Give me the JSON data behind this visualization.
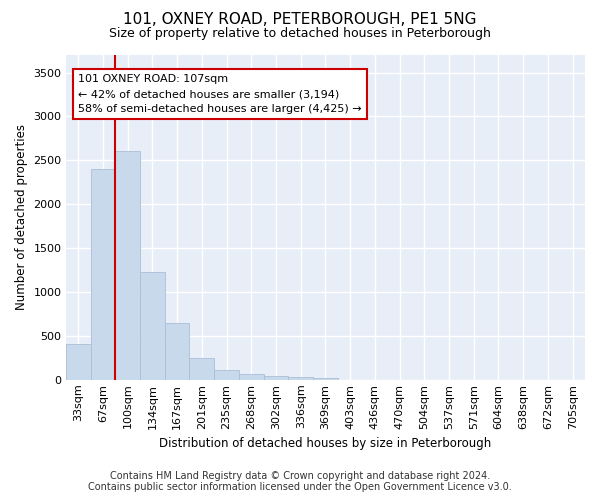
{
  "title1": "101, OXNEY ROAD, PETERBOROUGH, PE1 5NG",
  "title2": "Size of property relative to detached houses in Peterborough",
  "xlabel": "Distribution of detached houses by size in Peterborough",
  "ylabel": "Number of detached properties",
  "categories": [
    "33sqm",
    "67sqm",
    "100sqm",
    "134sqm",
    "167sqm",
    "201sqm",
    "235sqm",
    "268sqm",
    "302sqm",
    "336sqm",
    "369sqm",
    "403sqm",
    "436sqm",
    "470sqm",
    "504sqm",
    "537sqm",
    "571sqm",
    "604sqm",
    "638sqm",
    "672sqm",
    "705sqm"
  ],
  "values": [
    400,
    2400,
    2600,
    1230,
    640,
    250,
    110,
    60,
    45,
    30,
    20,
    0,
    0,
    0,
    0,
    0,
    0,
    0,
    0,
    0,
    0
  ],
  "bar_color": "#c8d9ec",
  "bar_edge_color": "#aabfd8",
  "property_line_color": "#cc0000",
  "property_line_x": 1.5,
  "annotation_line1": "101 OXNEY ROAD: 107sqm",
  "annotation_line2": "← 42% of detached houses are smaller (3,194)",
  "annotation_line3": "58% of semi-detached houses are larger (4,425) →",
  "annotation_box_facecolor": "white",
  "annotation_box_edgecolor": "#cc0000",
  "ylim_max": 3700,
  "yticks": [
    0,
    500,
    1000,
    1500,
    2000,
    2500,
    3000,
    3500
  ],
  "footnote": "Contains HM Land Registry data © Crown copyright and database right 2024.\nContains public sector information licensed under the Open Government Licence v3.0.",
  "fig_bg_color": "#ffffff",
  "plot_bg_color": "#e8eef8",
  "grid_color": "#ffffff",
  "title1_fontsize": 11,
  "title2_fontsize": 9,
  "axis_label_fontsize": 8.5,
  "tick_fontsize": 8,
  "annotation_fontsize": 8,
  "footnote_fontsize": 7
}
